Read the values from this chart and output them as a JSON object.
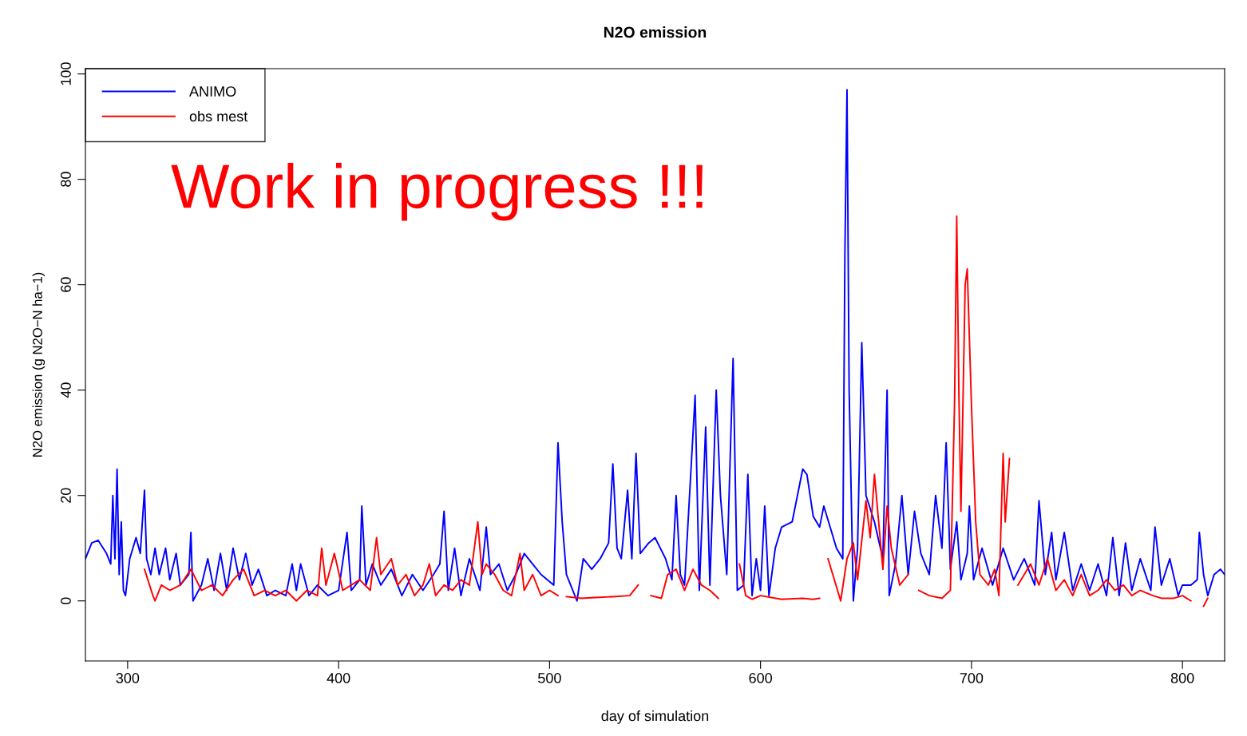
{
  "chart_data": {
    "type": "line",
    "title": "N2O emission",
    "xlabel": "day of simulation",
    "ylabel": "N2O emission (g N2O−N ha−1)",
    "annotations": [
      "Work in progress !!!"
    ],
    "xlim": [
      280,
      820
    ],
    "ylim": [
      -11.4,
      101
    ],
    "xticks": [
      300,
      400,
      500,
      600,
      700,
      800
    ],
    "yticks": [
      0,
      20,
      40,
      60,
      80,
      100
    ],
    "grid": false,
    "legend": "top left",
    "marker": "none",
    "line_style": "solid",
    "series": [
      {
        "name": "ANIMO",
        "color": "#0000ff",
        "x": [
          280,
          283,
          286,
          290,
          292,
          293,
          294,
          295,
          296,
          297,
          298,
          299,
          301,
          304,
          306,
          308,
          309,
          311,
          313,
          315,
          318,
          320,
          323,
          325,
          329,
          330,
          331,
          335,
          338,
          341,
          344,
          347,
          350,
          353,
          356,
          359,
          362,
          366,
          370,
          375,
          378,
          380,
          382,
          386,
          390,
          395,
          400,
          404,
          406,
          410,
          411,
          413,
          416,
          420,
          425,
          430,
          435,
          440,
          445,
          448,
          450,
          452,
          455,
          458,
          462,
          467,
          470,
          472,
          476,
          480,
          484,
          488,
          492,
          496,
          502,
          504,
          506,
          508,
          510,
          513,
          516,
          520,
          524,
          528,
          530,
          532,
          534,
          537,
          539,
          541,
          543,
          547,
          550,
          555,
          558,
          560,
          562,
          564,
          569,
          571,
          574,
          576,
          579,
          581,
          584,
          587,
          589,
          592,
          594,
          596,
          598,
          600,
          602,
          604,
          607,
          610,
          615,
          620,
          622,
          625,
          628,
          630,
          633,
          636,
          639,
          640,
          641,
          642,
          644,
          646,
          648,
          650,
          654,
          658,
          660,
          661,
          664,
          667,
          670,
          673,
          676,
          680,
          683,
          686,
          688,
          690,
          693,
          695,
          698,
          699,
          701,
          705,
          710,
          715,
          720,
          725,
          730,
          732,
          735,
          738,
          740,
          744,
          748,
          752,
          756,
          760,
          764,
          767,
          770,
          773,
          776,
          780,
          785,
          787,
          790,
          794,
          798,
          800,
          804,
          807,
          808,
          810,
          812,
          815,
          818,
          820
        ],
        "values": [
          8,
          11,
          11.5,
          9,
          7,
          20,
          8,
          25,
          5,
          15,
          2,
          1,
          8,
          12,
          9,
          21,
          8,
          5,
          10,
          5,
          10,
          4,
          9,
          3,
          5,
          13,
          0,
          3,
          8,
          2,
          9,
          2,
          10,
          4,
          9,
          3,
          6,
          1,
          2,
          1,
          7,
          2,
          7,
          1,
          3,
          1,
          2,
          13,
          2,
          4,
          18,
          3,
          7,
          3,
          6,
          1,
          5,
          2,
          5,
          7,
          17,
          2,
          10,
          1,
          8,
          2,
          14,
          5,
          7,
          2,
          5,
          9,
          7,
          5,
          3,
          30,
          15,
          5,
          3,
          0,
          8,
          6,
          8,
          11,
          26,
          10,
          8,
          21,
          8,
          28,
          9,
          11,
          12,
          8,
          4,
          20,
          5,
          3,
          39,
          2,
          33,
          3,
          40,
          20,
          5,
          46,
          2,
          3,
          24,
          1,
          8,
          2,
          18,
          1,
          10,
          14,
          15,
          25,
          24,
          16,
          14,
          18,
          14,
          10,
          8,
          66,
          97,
          40,
          0,
          10,
          49,
          20,
          15,
          8,
          40,
          1,
          7,
          20,
          5,
          17,
          9,
          5,
          20,
          10,
          30,
          6,
          15,
          4,
          9,
          18,
          4,
          10,
          3,
          10,
          4,
          8,
          3,
          19,
          5,
          13,
          4,
          13,
          2,
          7,
          2,
          7,
          1,
          12,
          1,
          11,
          2,
          8,
          2,
          14,
          3,
          8,
          1,
          3,
          3,
          4,
          13,
          5,
          1,
          5,
          6,
          5
        ]
      },
      {
        "name": "obs mest",
        "color": "#ff0000",
        "x": [
          308,
          312,
          313,
          316,
          320,
          325,
          330,
          335,
          340,
          345,
          350,
          355,
          360,
          365,
          370,
          375,
          380,
          385,
          390,
          392,
          394,
          398,
          402,
          406,
          410,
          415,
          418,
          420,
          425,
          428,
          432,
          436,
          440,
          443,
          446,
          450,
          454,
          458,
          462,
          466,
          468,
          470,
          474,
          478,
          482,
          486,
          488,
          492,
          496,
          500,
          504,
          506,
          508,
          515,
          520,
          530,
          538,
          542,
          544,
          548,
          553,
          556,
          560,
          564,
          568,
          572,
          576,
          580,
          582,
          590,
          593,
          596,
          600,
          610,
          620,
          625,
          628,
          630,
          632,
          635,
          638,
          641,
          644,
          646,
          650,
          652,
          654,
          656,
          658,
          660,
          662,
          666,
          670,
          672,
          675,
          680,
          686,
          690,
          692,
          693,
          694,
          695,
          697,
          698,
          699,
          700,
          702,
          704,
          708,
          711,
          713,
          715,
          716,
          718,
          720,
          722,
          728,
          732,
          736,
          740,
          744,
          748,
          752,
          756,
          760,
          764,
          768,
          772,
          776,
          780,
          786,
          790,
          796,
          800,
          804,
          806,
          810,
          812
        ],
        "values": [
          6,
          1,
          0,
          3,
          2,
          3,
          6,
          2,
          3,
          1,
          4,
          6,
          1,
          2,
          1,
          2,
          0,
          2,
          1,
          10,
          3,
          9,
          2,
          3,
          4,
          2,
          12,
          5,
          8,
          3,
          5,
          1,
          3,
          7,
          1,
          3,
          2,
          4,
          3,
          15,
          5,
          7,
          5,
          2,
          1,
          9,
          2,
          5,
          1,
          2,
          1,
          null,
          0.8,
          0.5,
          0.6,
          0.8,
          1,
          3,
          null,
          1,
          0.5,
          5,
          6,
          2,
          6,
          3,
          2,
          0.5,
          null,
          7,
          1,
          0.3,
          1,
          0.3,
          0.5,
          0.3,
          0.5,
          null,
          8,
          4,
          0,
          8,
          11,
          4,
          19,
          12,
          24,
          15,
          6,
          18,
          10,
          3,
          5,
          null,
          2,
          1,
          0.5,
          2,
          38,
          73,
          40,
          17,
          60,
          63,
          50,
          37,
          15,
          5,
          3,
          6,
          1,
          28,
          15,
          27,
          null,
          3,
          7,
          3,
          8,
          2,
          4,
          1,
          5,
          1,
          2,
          4,
          2,
          3,
          1,
          2,
          1,
          0.5,
          0.5,
          1,
          0,
          null,
          -1,
          0.5
        ]
      }
    ]
  }
}
